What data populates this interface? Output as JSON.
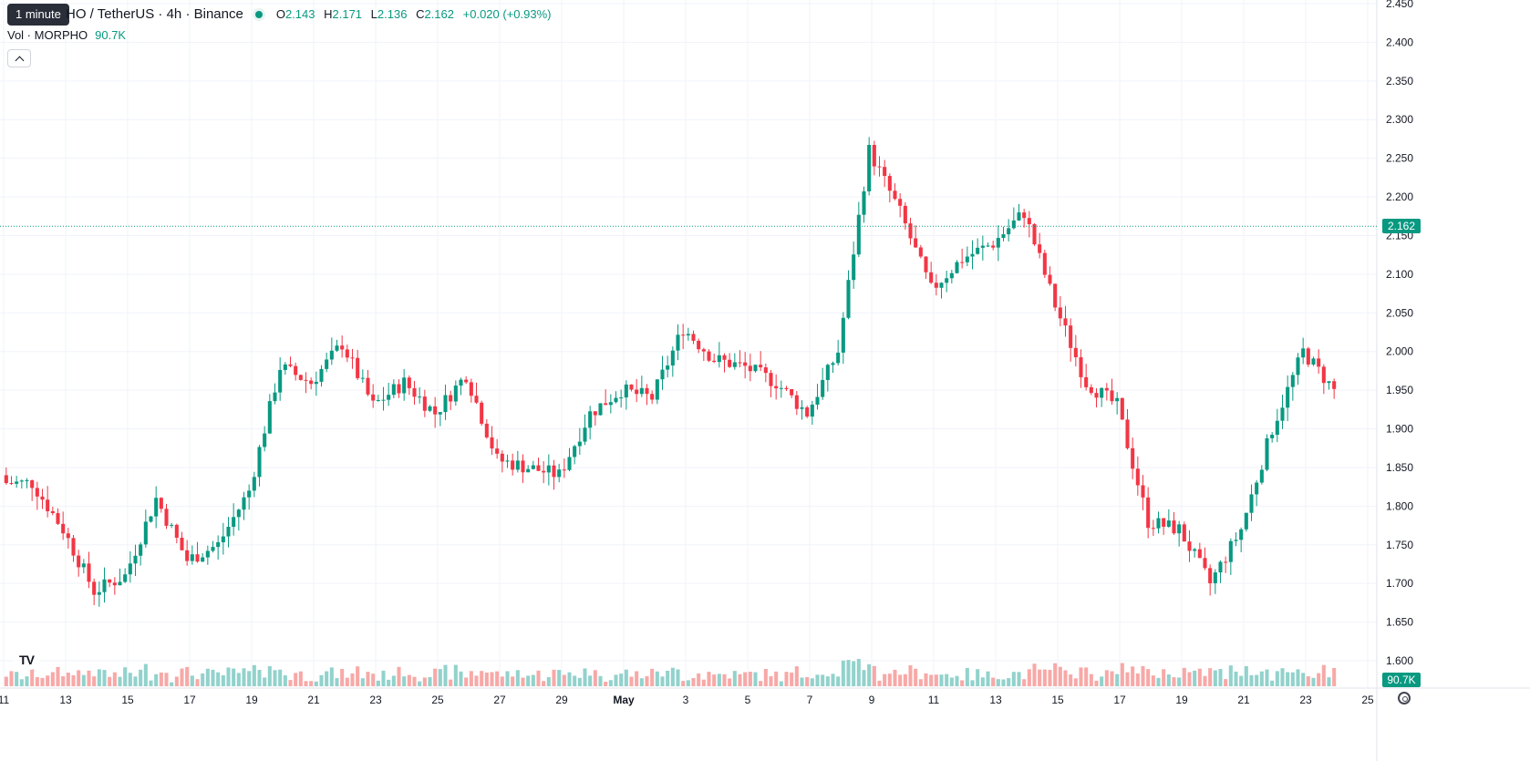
{
  "header": {
    "symbol_title": "HO / TetherUS · 4h · Binance",
    "tooltip": "1 minute",
    "ohlc": {
      "o_label": "O",
      "o": "2.143",
      "h_label": "H",
      "h": "2.171",
      "l_label": "L",
      "l": "2.136",
      "c_label": "C",
      "c": "2.162",
      "change": "+0.020 (+0.93%)"
    },
    "volume_label": "Vol · MORPHO",
    "volume_value": "90.7K"
  },
  "price_axis": {
    "current_price": "2.162",
    "current_volume": "90.7K"
  },
  "colors": {
    "up": "#089981",
    "down": "#F23645",
    "up_volume": "#92D2CC",
    "down_volume": "#F7A9A7",
    "grid": "#F0F3FA"
  },
  "icons": [
    "tradingview-logo-icon",
    "chevron-up-icon",
    "settings-icon",
    "status-dot-icon"
  ],
  "chart_data": {
    "type": "candlestick",
    "price_ticks": [
      "2.450",
      "2.400",
      "2.350",
      "2.300",
      "2.250",
      "2.200",
      "2.150",
      "2.100",
      "2.050",
      "2.000",
      "1.950",
      "1.900",
      "1.850",
      "1.800",
      "1.750",
      "1.700",
      "1.650",
      "1.600"
    ],
    "x_ticks": [
      "11",
      "13",
      "15",
      "17",
      "19",
      "21",
      "23",
      "25",
      "27",
      "29",
      "May",
      "3",
      "5",
      "7",
      "9",
      "11",
      "13",
      "15",
      "17",
      "19",
      "21",
      "23",
      "25"
    ],
    "ylim": [
      1.6,
      2.45
    ],
    "bars_per_day": 6,
    "days": [
      "11",
      "12",
      "13",
      "14",
      "15",
      "16",
      "17",
      "18",
      "19",
      "20",
      "21",
      "22",
      "23",
      "24",
      "25",
      "26",
      "27",
      "28",
      "29",
      "30",
      "May",
      "2",
      "3",
      "4",
      "5",
      "6",
      "7",
      "8",
      "9",
      "10",
      "11",
      "12",
      "13",
      "14",
      "15",
      "16",
      "17",
      "18",
      "19",
      "20",
      "21",
      "22",
      "23",
      "24"
    ],
    "day_close": [
      1.83,
      1.77,
      1.69,
      1.71,
      1.81,
      1.73,
      1.75,
      1.82,
      1.98,
      1.96,
      2.01,
      1.93,
      1.96,
      1.92,
      1.97,
      1.86,
      1.85,
      1.84,
      1.92,
      1.95,
      1.94,
      2.03,
      1.99,
      1.98,
      1.96,
      1.92,
      2.0,
      2.26,
      2.18,
      2.08,
      2.12,
      2.14,
      2.18,
      2.06,
      1.96,
      1.93,
      1.78,
      1.77,
      1.7,
      1.77,
      1.9,
      2.0,
      1.95,
      2.16
    ],
    "grid": true
  }
}
